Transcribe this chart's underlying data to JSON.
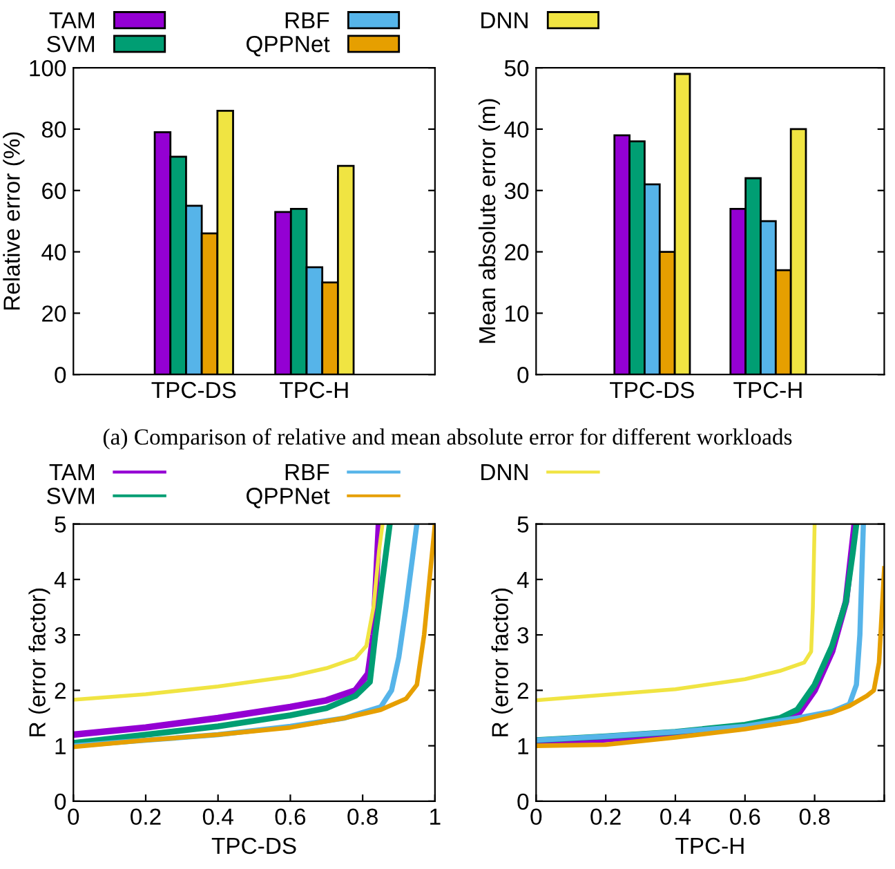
{
  "chart_data": [
    {
      "type": "bar",
      "ylabel": "Relative error (%)",
      "categories": [
        "TPC-DS",
        "TPC-H"
      ],
      "ylim": [
        0,
        100
      ],
      "yticks": [
        0,
        20,
        40,
        60,
        80,
        100
      ],
      "legend": "top",
      "annotations": [
        "(a) Comparison of relative and mean absolute error for different workloads"
      ],
      "series": [
        {
          "name": "TAM",
          "color": "#9400d3",
          "values": [
            79,
            53
          ]
        },
        {
          "name": "SVM",
          "color": "#009e73",
          "values": [
            71,
            54
          ]
        },
        {
          "name": "RBF",
          "color": "#56b4e9",
          "values": [
            55,
            35
          ]
        },
        {
          "name": "QPPNet",
          "color": "#e69f00",
          "values": [
            46,
            30
          ]
        },
        {
          "name": "DNN",
          "color": "#f0e442",
          "values": [
            86,
            68
          ]
        }
      ]
    },
    {
      "type": "bar",
      "ylabel": "Mean absolute error (m)",
      "categories": [
        "TPC-DS",
        "TPC-H"
      ],
      "ylim": [
        0,
        50
      ],
      "yticks": [
        0,
        10,
        20,
        30,
        40,
        50
      ],
      "series": [
        {
          "color": "#9400d3",
          "values": [
            39,
            27
          ]
        },
        {
          "color": "#009e73",
          "values": [
            38,
            32
          ]
        },
        {
          "color": "#56b4e9",
          "values": [
            31,
            25
          ]
        },
        {
          "color": "#e69f00",
          "values": [
            20,
            17
          ]
        },
        {
          "color": "#f0e442",
          "values": [
            49,
            40
          ]
        }
      ]
    },
    {
      "type": "line",
      "xlabel": "TPC-DS",
      "ylabel": "R (error factor)",
      "xlim": [
        0,
        1
      ],
      "xticks": [
        0,
        0.2,
        0.4,
        0.6,
        0.8,
        1
      ],
      "ylim": [
        0,
        5
      ],
      "yticks": [
        0,
        1,
        2,
        3,
        4,
        5
      ],
      "legend": "top",
      "line_style": "solid",
      "series": [
        {
          "name": "TAM",
          "color": "#9400d3",
          "x": [
            0,
            0.2,
            0.4,
            0.6,
            0.7,
            0.78,
            0.815,
            0.83,
            0.845
          ],
          "values": [
            1.2,
            1.33,
            1.5,
            1.7,
            1.82,
            2.0,
            2.3,
            3.0,
            5
          ]
        },
        {
          "name": "SVM",
          "color": "#009e73",
          "x": [
            0,
            0.2,
            0.4,
            0.6,
            0.7,
            0.78,
            0.82,
            0.835,
            0.855,
            0.875
          ],
          "values": [
            1.05,
            1.2,
            1.35,
            1.55,
            1.68,
            1.9,
            2.15,
            3,
            4,
            5
          ]
        },
        {
          "name": "RBF",
          "color": "#56b4e9",
          "x": [
            0,
            0.2,
            0.4,
            0.6,
            0.75,
            0.85,
            0.88,
            0.9,
            0.92,
            0.95
          ],
          "values": [
            1.0,
            1.1,
            1.2,
            1.35,
            1.5,
            1.7,
            2.0,
            2.6,
            3.5,
            5
          ]
        },
        {
          "name": "QPPNet",
          "color": "#e69f00",
          "x": [
            0,
            0.2,
            0.4,
            0.6,
            0.75,
            0.85,
            0.92,
            0.95,
            0.97,
            0.985,
            1.0
          ],
          "values": [
            0.98,
            1.1,
            1.2,
            1.33,
            1.5,
            1.65,
            1.85,
            2.1,
            3,
            4,
            5
          ]
        },
        {
          "name": "DNN",
          "color": "#f0e442",
          "x": [
            0,
            0.2,
            0.4,
            0.6,
            0.7,
            0.78,
            0.81,
            0.83,
            0.845,
            0.855
          ],
          "values": [
            1.83,
            1.93,
            2.07,
            2.25,
            2.4,
            2.58,
            2.8,
            3.5,
            4.5,
            5
          ]
        }
      ]
    },
    {
      "type": "line",
      "xlabel": "TPC-H",
      "ylabel": "R (error factor)",
      "xlim": [
        0,
        1
      ],
      "xticks": [
        0,
        0.2,
        0.4,
        0.6,
        0.8,
        {
          "value": 1,
          "label": null
        }
      ],
      "ylim": [
        0,
        5
      ],
      "yticks": [
        0,
        1,
        2,
        3,
        4,
        5
      ],
      "line_style": "solid",
      "series": [
        {
          "color": "#9400d3",
          "x": [
            0,
            0.2,
            0.4,
            0.6,
            0.7,
            0.75,
            0.8,
            0.85,
            0.89,
            0.915
          ],
          "values": [
            1.05,
            1.12,
            1.22,
            1.35,
            1.42,
            1.55,
            2.0,
            2.7,
            3.6,
            5
          ]
        },
        {
          "color": "#009e73",
          "x": [
            0,
            0.2,
            0.4,
            0.6,
            0.7,
            0.75,
            0.8,
            0.85,
            0.89,
            0.91,
            0.92
          ],
          "values": [
            1.1,
            1.17,
            1.25,
            1.38,
            1.5,
            1.65,
            2.1,
            2.8,
            3.6,
            4.5,
            5
          ]
        },
        {
          "color": "#56b4e9",
          "x": [
            0,
            0.2,
            0.4,
            0.6,
            0.75,
            0.85,
            0.9,
            0.92,
            0.93,
            0.94
          ],
          "values": [
            1.1,
            1.17,
            1.25,
            1.35,
            1.5,
            1.62,
            1.75,
            2.1,
            3,
            5
          ]
        },
        {
          "color": "#e69f00",
          "x": [
            0,
            0.2,
            0.4,
            0.6,
            0.75,
            0.85,
            0.9,
            0.95,
            0.97,
            0.985,
            1.0
          ],
          "values": [
            1.0,
            1.02,
            1.15,
            1.3,
            1.45,
            1.6,
            1.72,
            1.9,
            2.0,
            2.5,
            4.2
          ]
        },
        {
          "color": "#f0e442",
          "x": [
            0,
            0.2,
            0.4,
            0.6,
            0.7,
            0.77,
            0.79,
            0.795,
            0.8
          ],
          "values": [
            1.82,
            1.92,
            2.02,
            2.2,
            2.35,
            2.5,
            2.7,
            3.5,
            5
          ]
        }
      ]
    }
  ]
}
